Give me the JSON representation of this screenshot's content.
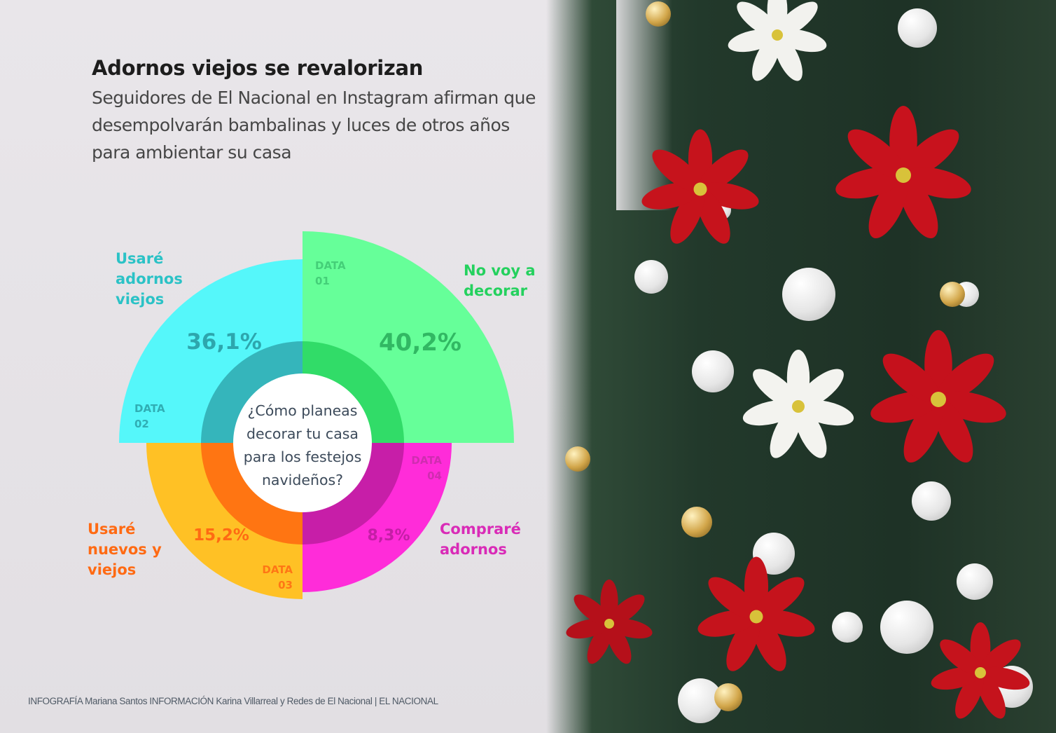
{
  "header": {
    "title": "Adornos viejos se revalorizan",
    "subtitle_lines": [
      "Seguidores de El Nacional en Instagram afirman que",
      "desempolvarán bambalinas y luces de otros años",
      "para ambientar su casa"
    ]
  },
  "chart_data": {
    "type": "pie",
    "question_lines": [
      "¿Cómo planeas",
      "decorar tu casa",
      "para los festejos",
      "navideños?"
    ],
    "slices": [
      {
        "id": "DATA 01",
        "label_lines": [
          "No voy a",
          "decorar"
        ],
        "value": 40.2,
        "value_label": "40,2%",
        "color": "#66ff99",
        "value_color": "#31b863",
        "id_color": "#3fc773"
      },
      {
        "id": "DATA 02",
        "label_lines": [
          "Usaré",
          "adornos",
          "viejos"
        ],
        "value": 36.1,
        "value_label": "36,1%",
        "color": "#55f7fa",
        "value_color": "#2da6ad",
        "id_color": "#2aa2a8"
      },
      {
        "id": "DATA 03",
        "label_lines": [
          "Usaré",
          "nuevos y",
          "viejos"
        ],
        "value": 15.2,
        "value_label": "15,2%",
        "color": "#ffc125",
        "value_color": "#ff6a13",
        "id_color": "#ff6a13"
      },
      {
        "id": "DATA 04",
        "label_lines": [
          "Compraré",
          "adornos"
        ],
        "value": 8.3,
        "value_label": "8,3%",
        "color": "#ff2cd9",
        "value_color": "#c41ea6",
        "id_color": "#c72ea9"
      }
    ],
    "label_colors": [
      "#24d15e",
      "#2bc2c6",
      "#ff6a13",
      "#d92bb7"
    ]
  },
  "footer": {
    "credit": "INFOGRAFÍA Mariana Santos INFORMACIÓN Karina Villarreal y Redes de El Nacional | EL NACIONAL"
  }
}
